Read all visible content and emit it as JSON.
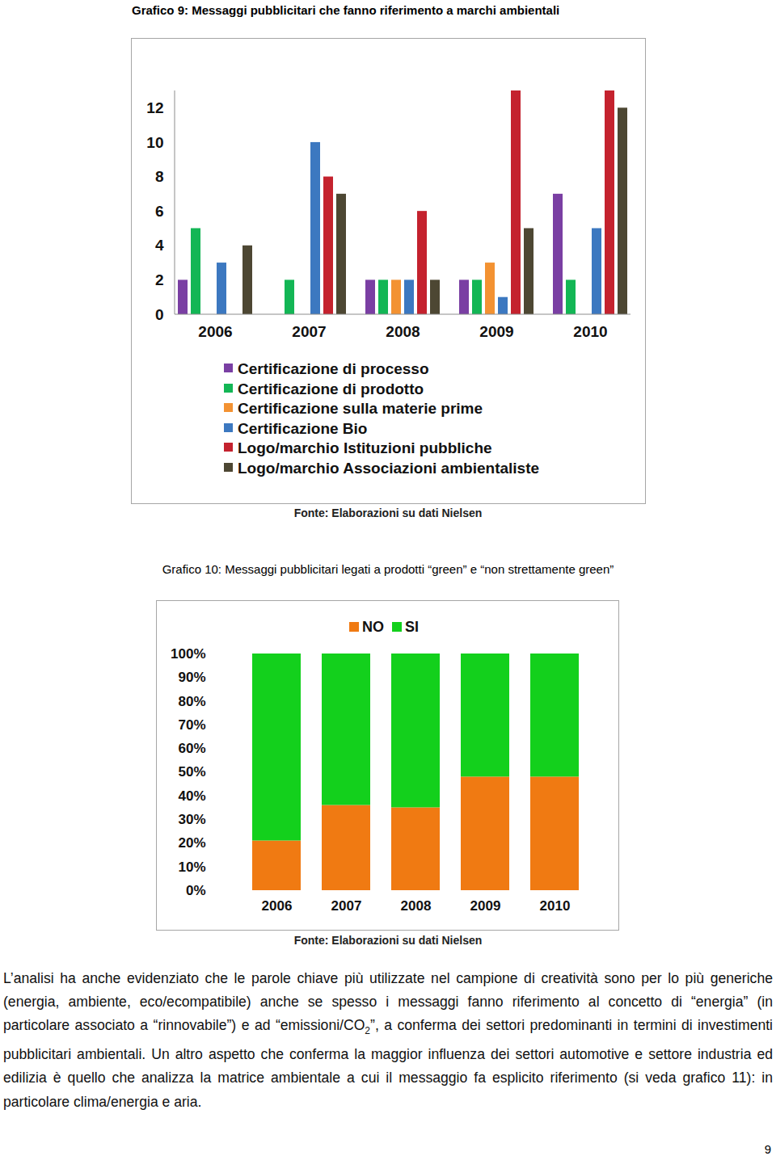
{
  "chart_data": [
    {
      "type": "bar",
      "title": "Grafico 9: Messaggi pubblicitari che fanno riferimento a marchi ambientali",
      "source": "Fonte: Elaborazioni su dati Nielsen",
      "categories": [
        "2006",
        "2007",
        "2008",
        "2009",
        "2010"
      ],
      "series": [
        {
          "name": "Certificazione di processo",
          "color": "#7a3fa3",
          "values": [
            2,
            null,
            2,
            2,
            7
          ]
        },
        {
          "name": "Certificazione di prodotto",
          "color": "#13b655",
          "values": [
            5,
            2,
            2,
            2,
            2
          ]
        },
        {
          "name": "Certificazione sulla materie prime",
          "color": "#f39232",
          "values": [
            null,
            null,
            2,
            3,
            null
          ]
        },
        {
          "name": "Certificazione Bio",
          "color": "#3c78c0",
          "values": [
            3,
            10,
            2,
            1,
            5
          ]
        },
        {
          "name": "Logo/marchio Istituzioni pubbliche",
          "color": "#c4222e",
          "values": [
            null,
            8,
            6,
            13,
            13
          ]
        },
        {
          "name": "Logo/marchio Associazioni ambientaliste",
          "color": "#4d4733",
          "values": [
            4,
            7,
            2,
            5,
            12
          ]
        }
      ],
      "ylim": [
        0,
        13
      ],
      "yticks": [
        0,
        2,
        4,
        6,
        8,
        10,
        12
      ],
      "grid": false,
      "legend": "bottom"
    },
    {
      "type": "bar",
      "title": "Grafico 10: Messaggi pubblicitari legati a prodotti “green” e “non strettamente green”",
      "source": "Fonte: Elaborazioni su dati Nielsen",
      "categories": [
        "2006",
        "2007",
        "2008",
        "2009",
        "2010"
      ],
      "series": [
        {
          "name": "NO",
          "color": "#f07a12",
          "values": [
            21,
            36,
            35,
            48,
            48
          ]
        },
        {
          "name": "SI",
          "color": "#13d01c",
          "values": [
            79,
            64,
            65,
            52,
            52
          ]
        }
      ],
      "stacked": true,
      "ylim": [
        0,
        100
      ],
      "yticks": [
        {
          "value": 0,
          "label": "0%"
        },
        {
          "value": 10,
          "label": "10%"
        },
        {
          "value": 20,
          "label": "20%"
        },
        {
          "value": 30,
          "label": "30%"
        },
        {
          "value": 40,
          "label": "40%"
        },
        {
          "value": 50,
          "label": "50%"
        },
        {
          "value": 60,
          "label": "60%"
        },
        {
          "value": 70,
          "label": "70%"
        },
        {
          "value": 80,
          "label": "80%"
        },
        {
          "value": 90,
          "label": "90%"
        },
        {
          "value": 100,
          "label": "100%"
        }
      ],
      "grid": false,
      "legend": "top"
    }
  ],
  "body_text": [
    {
      "text": "L’analisi ha anche evidenziato che le parole chiave più utilizzate nel campione di creatività sono per lo più generiche (energia, ambiente, eco/ecompatibile) anche se spesso i messaggi fanno riferimento al concetto di “energia” (in particolare associato a “rinnovabile”) e ad “emissioni/CO"
    },
    {
      "text": "2",
      "style": "sub"
    },
    {
      "text": "”, a conferma dei settori predominanti in termini di investimenti pubblicitari ambientali. Un altro aspetto che conferma la maggior influenza dei settori automotive e settore industria ed edilizia è quello che analizza la matrice ambientale a cui il messaggio fa esplicito riferimento (si veda grafico 11): in particolare clima/energia e aria."
    }
  ],
  "page_number": 9
}
